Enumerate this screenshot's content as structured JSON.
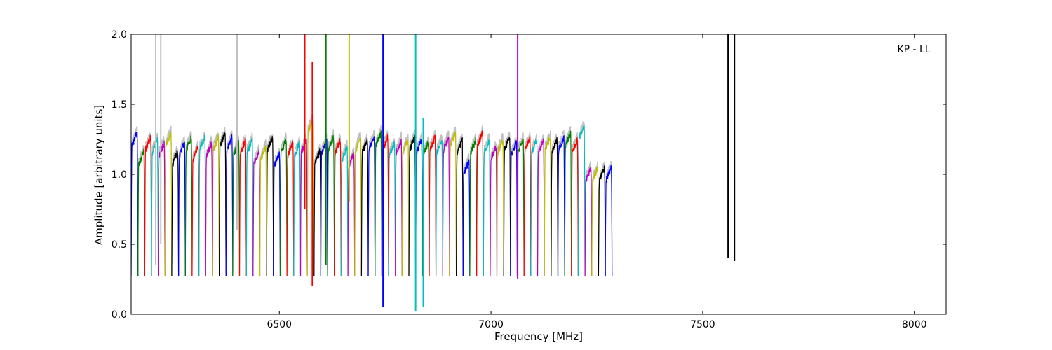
{
  "chart_data": {
    "type": "line",
    "xlabel": "Frequency [MHz]",
    "ylabel": "Amplitude [arbitrary units]",
    "annotation": "KP - LL",
    "xlim": [
      6150,
      8075
    ],
    "ylim": [
      0.0,
      2.0
    ],
    "xticks": [
      6500,
      7000,
      7500,
      8000
    ],
    "yticks": [
      0.0,
      0.5,
      1.0,
      1.5,
      2.0
    ],
    "ytick_labels": [
      "0.0",
      "0.5",
      "1.0",
      "1.5",
      "2.0"
    ],
    "grid": false,
    "channel_width_mhz": 16,
    "channel_start_mhz": 6150,
    "color_cycle": [
      "#0000ff",
      "#008000",
      "#ff0000",
      "#00bfbf",
      "#bf00bf",
      "#bfbf00",
      "#000000"
    ],
    "background_color": "#bfbfbf",
    "channel_plateau_levels": [
      1.25,
      1.12,
      1.22,
      1.2,
      1.18,
      1.25,
      1.12,
      1.18,
      1.22,
      1.15,
      1.22,
      1.18,
      1.22,
      1.25,
      1.22,
      1.18,
      1.2,
      1.2,
      1.12,
      1.15,
      1.22,
      1.1,
      1.2,
      1.18,
      1.18,
      1.2,
      1.35,
      1.12,
      1.2,
      1.22,
      1.2,
      1.15,
      1.1,
      1.22,
      1.2,
      1.22,
      1.25,
      1.22,
      1.18,
      1.2,
      1.2,
      1.22,
      1.2,
      1.18,
      1.22,
      1.2,
      1.22,
      1.25,
      1.2,
      1.05,
      1.2,
      1.25,
      1.2,
      1.15,
      1.2,
      1.22,
      1.18,
      1.2,
      1.22,
      1.2,
      1.2,
      1.22,
      1.2,
      1.22,
      1.25,
      1.2,
      1.3,
      1.0,
      1.0,
      1.0,
      1.0
    ],
    "spikes": [
      {
        "x": 6208,
        "ymin": 0.35,
        "ymax": 2.0,
        "series": "background"
      },
      {
        "x": 6220,
        "ymin": 0.5,
        "ymax": 2.0,
        "series": "background"
      },
      {
        "x": 6400,
        "ymin": 0.6,
        "ymax": 2.0,
        "series": "background"
      },
      {
        "x": 6560,
        "ymin": 0.75,
        "ymax": 2.0,
        "series": "red"
      },
      {
        "x": 6578,
        "ymin": 0.2,
        "ymax": 1.8,
        "series": "red"
      },
      {
        "x": 6610,
        "ymin": 0.35,
        "ymax": 2.0,
        "series": "green"
      },
      {
        "x": 6665,
        "ymin": 0.8,
        "ymax": 2.0,
        "series": "olive"
      },
      {
        "x": 6745,
        "ymin": 0.05,
        "ymax": 2.0,
        "series": "blue"
      },
      {
        "x": 6822,
        "ymin": 0.02,
        "ymax": 2.0,
        "series": "cyan"
      },
      {
        "x": 6840,
        "ymin": 0.05,
        "ymax": 1.4,
        "series": "cyan"
      },
      {
        "x": 7063,
        "ymin": 0.25,
        "ymax": 2.0,
        "series": "magenta"
      },
      {
        "x": 7560,
        "ymin": 0.4,
        "ymax": 2.0,
        "series": "black"
      },
      {
        "x": 7575,
        "ymin": 0.38,
        "ymax": 2.0,
        "series": "black"
      }
    ]
  }
}
